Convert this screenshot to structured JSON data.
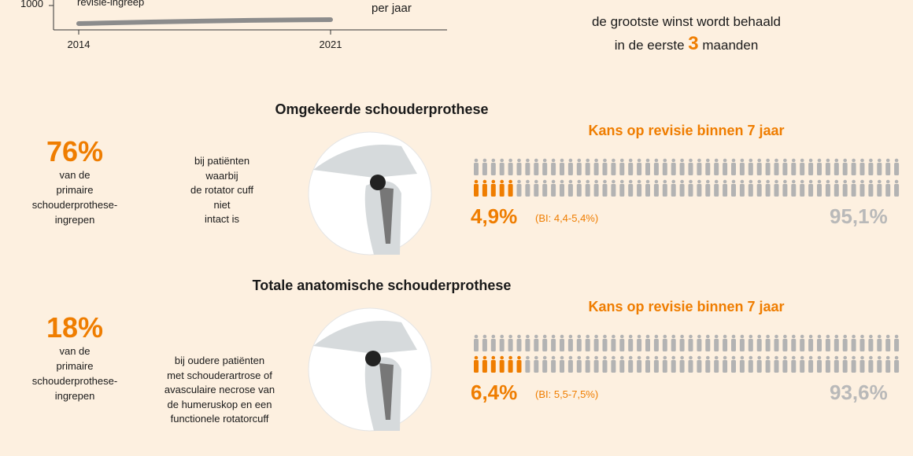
{
  "top_chart": {
    "y_tick": "1000",
    "series_label": "revisie-ingreep",
    "x_labels": [
      "2014",
      "2021"
    ],
    "unit": "per jaar"
  },
  "top_note": {
    "line1": "de grootste winst wordt behaald",
    "line2_pre": "in de eerste",
    "line2_num": "3",
    "line2_post": "maanden"
  },
  "sections": [
    {
      "title": "Omgekeerde schouderprothese",
      "share": "76%",
      "share_desc": [
        "van de",
        "primaire",
        "schouderprothese-",
        "ingrepen"
      ],
      "indication": [
        "bij patiënten",
        "waarbij",
        "de rotator cuff",
        "niet",
        "intact is"
      ],
      "risk_title": "Kans op revisie binnen 7 jaar",
      "revision": "4,9%",
      "ci": "(BI: 4,4-5,4%)",
      "no_revision": "95,1%"
    },
    {
      "title": "Totale anatomische schouderprothese",
      "share": "18%",
      "share_desc": [
        "van de",
        "primaire",
        "schouderprothese-",
        "ingrepen"
      ],
      "indication": [
        "bij oudere patiënten",
        "met schouderartrose of",
        "avasculaire necrose van",
        "de humeruskop en een",
        "functionele rotatorcuff"
      ],
      "risk_title": "Kans op revisie binnen 7 jaar",
      "revision": "6,4%",
      "ci": "(BI: 5,5-7,5%)",
      "no_revision": "93,6%"
    }
  ]
}
